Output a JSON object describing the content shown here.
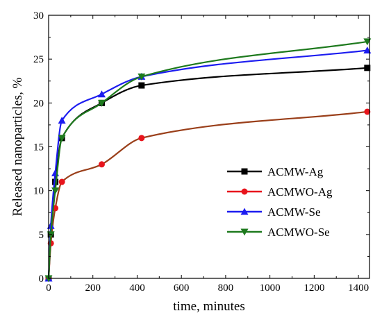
{
  "chart_data": {
    "type": "scatter",
    "xlabel": "time, minutes",
    "ylabel": "Released nanoparticles, %",
    "xlim": [
      0,
      1450
    ],
    "ylim": [
      0,
      30
    ],
    "xticks": [
      0,
      200,
      400,
      600,
      800,
      1000,
      1200,
      1400
    ],
    "yticks": [
      0,
      5,
      10,
      15,
      20,
      25,
      30
    ],
    "grid": false,
    "legend_position": "center-right",
    "series": [
      {
        "name": "ACMW-Ag",
        "color": "#000000",
        "marker": "square",
        "x": [
          0,
          10,
          30,
          60,
          240,
          420,
          1440
        ],
        "y": [
          0,
          5,
          11,
          16,
          20,
          22,
          24
        ]
      },
      {
        "name": "ACMWO-Ag",
        "color": "#e8141c",
        "fit_color": "#9a3f1a",
        "marker": "circle",
        "x": [
          0,
          10,
          30,
          60,
          240,
          420,
          1440
        ],
        "y": [
          0,
          4,
          8,
          11,
          13,
          16,
          19
        ]
      },
      {
        "name": "ACMW-Se",
        "color": "#1c1cf0",
        "marker": "triangle-up",
        "x": [
          0,
          10,
          30,
          60,
          240,
          420,
          1440
        ],
        "y": [
          0,
          6,
          12,
          18,
          21,
          23,
          26
        ]
      },
      {
        "name": "ACMWO-Se",
        "color": "#1e7a1e",
        "marker": "triangle-down",
        "x": [
          0,
          10,
          30,
          60,
          240,
          420,
          1440
        ],
        "y": [
          0,
          5,
          10,
          16,
          20,
          23,
          27
        ]
      }
    ]
  }
}
